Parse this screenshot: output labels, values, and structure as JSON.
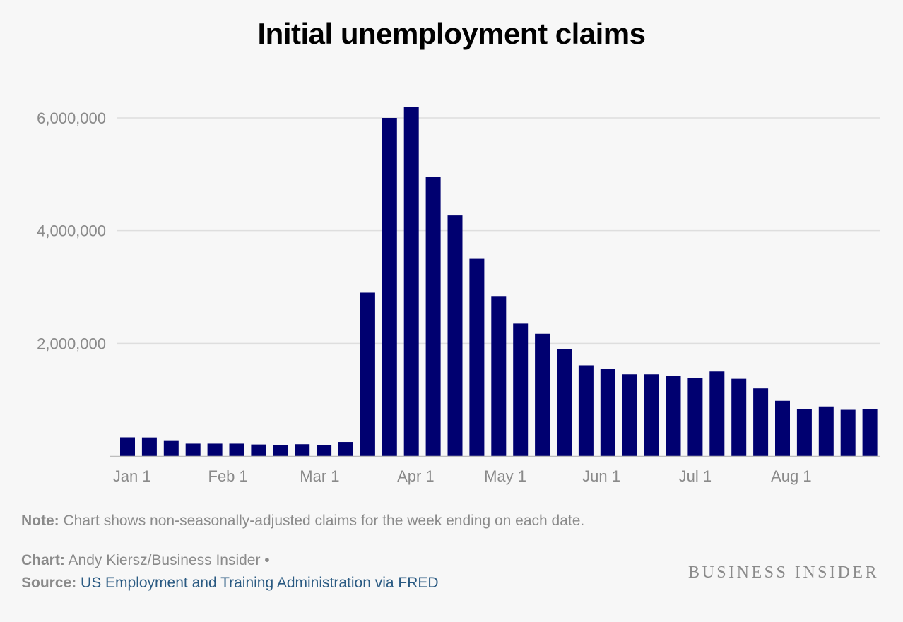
{
  "chart_data": {
    "type": "bar",
    "title": "Initial unemployment claims",
    "xlabel": "",
    "ylabel": "",
    "ylim": [
      0,
      6000000
    ],
    "yticks": [
      2000000,
      4000000,
      6000000
    ],
    "ytick_labels": [
      "2,000,000",
      "4,000,000",
      "6,000,000"
    ],
    "xtick_labels": [
      "Jan 1",
      "Feb 1",
      "Mar 1",
      "Apr 1",
      "May 1",
      "Jun 1",
      "Jul 1",
      "Aug 1"
    ],
    "xtick_positions": [
      0.2,
      4.6,
      8.8,
      13.2,
      17.3,
      21.7,
      26.0,
      30.4
    ],
    "color": "#000070",
    "grid": true,
    "values": [
      332000,
      330000,
      280000,
      220000,
      220000,
      220000,
      205000,
      190000,
      210000,
      195000,
      250000,
      2900000,
      6000000,
      6200000,
      4950000,
      4270000,
      3500000,
      2840000,
      2350000,
      2170000,
      1900000,
      1610000,
      1550000,
      1450000,
      1450000,
      1420000,
      1380000,
      1500000,
      1370000,
      1200000,
      980000,
      830000,
      880000,
      820000,
      830000
    ]
  },
  "note": {
    "label": "Note:",
    "text": " Chart shows non-seasonally-adjusted claims for the week ending on each date."
  },
  "credit": {
    "label": "Chart:",
    "text": " Andy Kiersz/Business Insider •"
  },
  "source": {
    "label": "Source:",
    "text": "US Employment and Training Administration via FRED"
  },
  "brand": "BUSINESS INSIDER"
}
